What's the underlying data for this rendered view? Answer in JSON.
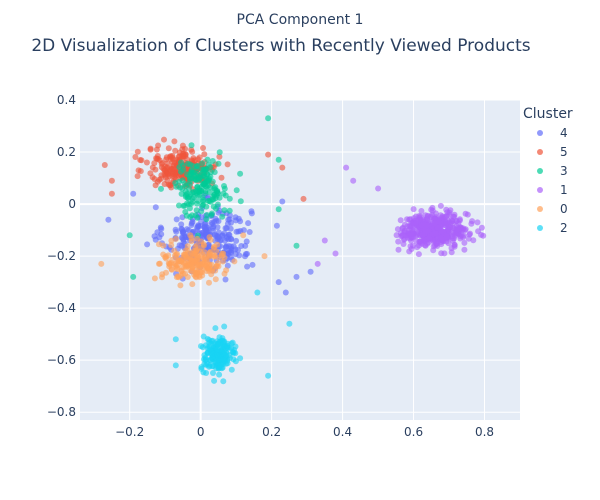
{
  "chart_data": {
    "type": "scatter",
    "top_label": "PCA Component 1",
    "title": "2D Visualization of Clusters with Recently Viewed Products",
    "xlabel": "",
    "ylabel": "",
    "xlim": [
      -0.34,
      0.9
    ],
    "ylim": [
      -0.83,
      0.4
    ],
    "xticks": [
      -0.2,
      0,
      0.2,
      0.4,
      0.6,
      0.8
    ],
    "xtick_labels": [
      "−0.2",
      "0",
      "0.2",
      "0.4",
      "0.6",
      "0.8"
    ],
    "yticks": [
      -0.8,
      -0.6,
      -0.4,
      -0.2,
      0,
      0.2,
      0.4
    ],
    "ytick_labels": [
      "−0.8",
      "−0.6",
      "−0.4",
      "−0.2",
      "0",
      "0.2",
      "0.4"
    ],
    "grid": true,
    "legend_title": "Cluster",
    "legend_position": "right",
    "series": [
      {
        "name": "4",
        "color": "#636efa",
        "count": 260,
        "center": [
          0.02,
          -0.13
        ],
        "spread": [
          0.11,
          0.11
        ],
        "outliers": [
          [
            -0.26,
            -0.06
          ],
          [
            0.23,
            0.01
          ],
          [
            0.27,
            -0.28
          ],
          [
            0.24,
            -0.34
          ],
          [
            0.31,
            -0.26
          ],
          [
            0.22,
            -0.3
          ],
          [
            -0.19,
            0.04
          ]
        ]
      },
      {
        "name": "5",
        "color": "#ef553b",
        "count": 230,
        "center": [
          -0.05,
          0.14
        ],
        "spread": [
          0.09,
          0.07
        ],
        "outliers": [
          [
            -0.27,
            0.15
          ],
          [
            -0.25,
            0.09
          ],
          [
            0.23,
            0.14
          ],
          [
            0.19,
            0.19
          ],
          [
            -0.25,
            0.04
          ],
          [
            0.29,
            0.02
          ]
        ]
      },
      {
        "name": "3",
        "color": "#00cc96",
        "count": 170,
        "center": [
          0.0,
          0.06
        ],
        "spread": [
          0.07,
          0.1
        ],
        "outliers": [
          [
            0.19,
            0.33
          ],
          [
            0.22,
            0.17
          ],
          [
            -0.19,
            -0.28
          ],
          [
            -0.2,
            -0.12
          ],
          [
            0.27,
            -0.16
          ],
          [
            0.22,
            -0.02
          ]
        ]
      },
      {
        "name": "1",
        "color": "#ab63fa",
        "count": 430,
        "center": [
          0.66,
          -0.1
        ],
        "spread": [
          0.085,
          0.06
        ],
        "outliers": [
          [
            0.41,
            0.14
          ],
          [
            0.43,
            0.09
          ],
          [
            0.5,
            0.06
          ],
          [
            0.35,
            -0.14
          ],
          [
            0.33,
            -0.23
          ],
          [
            0.38,
            -0.19
          ]
        ]
      },
      {
        "name": "0",
        "color": "#ffa15a",
        "count": 200,
        "center": [
          -0.02,
          -0.22
        ],
        "spread": [
          0.08,
          0.07
        ],
        "outliers": [
          [
            -0.28,
            -0.23
          ],
          [
            0.12,
            -0.12
          ],
          [
            0.18,
            -0.2
          ]
        ]
      },
      {
        "name": "2",
        "color": "#19d3f3",
        "count": 170,
        "center": [
          0.05,
          -0.58
        ],
        "spread": [
          0.045,
          0.06
        ],
        "outliers": [
          [
            0.25,
            -0.46
          ],
          [
            0.16,
            -0.34
          ],
          [
            -0.07,
            -0.62
          ],
          [
            -0.07,
            -0.52
          ],
          [
            0.19,
            -0.66
          ]
        ]
      }
    ]
  }
}
